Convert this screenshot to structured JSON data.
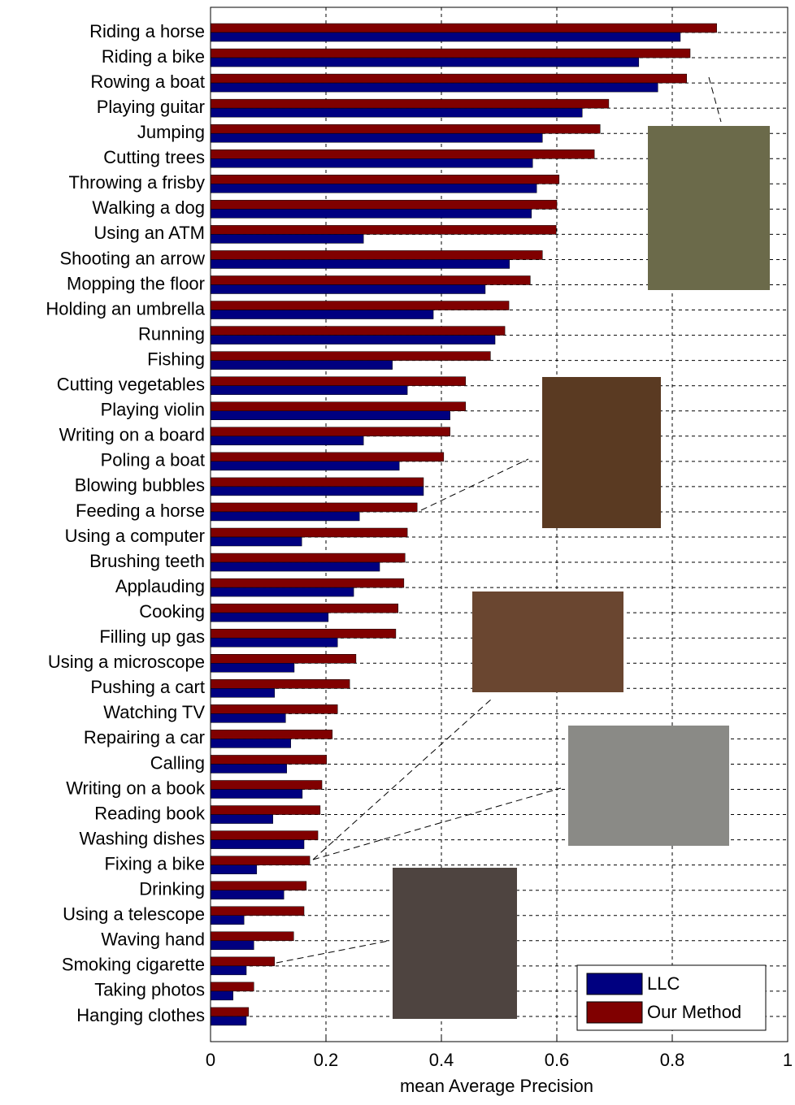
{
  "chart_data": {
    "type": "barh",
    "xlabel": "mean Average Precision",
    "categories": [
      "Riding a horse",
      "Riding a bike",
      "Rowing a boat",
      "Playing guitar",
      "Jumping",
      "Cutting trees",
      "Throwing a frisby",
      "Walking a dog",
      "Using an ATM",
      "Shooting an arrow",
      "Mopping the floor",
      "Holding an umbrella",
      "Running",
      "Fishing",
      "Cutting vegetables",
      "Playing violin",
      "Writing on a board",
      "Poling a boat",
      "Blowing bubbles",
      "Feeding a horse",
      "Using a computer",
      "Brushing teeth",
      "Applauding",
      "Cooking",
      "Filling up gas",
      "Using a microscope",
      "Pushing a cart",
      "Watching TV",
      "Repairing a car",
      "Calling",
      "Writing on a book",
      "Reading book",
      "Washing dishes",
      "Fixing a bike",
      "Drinking",
      "Using a telescope",
      "Waving hand",
      "Smoking cigarette",
      "Taking photos",
      "Hanging clothes"
    ],
    "series": [
      {
        "name": "Our Method",
        "color": "#800000",
        "values": [
          0.877,
          0.831,
          0.825,
          0.69,
          0.675,
          0.665,
          0.604,
          0.6,
          0.599,
          0.575,
          0.554,
          0.517,
          0.51,
          0.485,
          0.442,
          0.442,
          0.415,
          0.404,
          0.369,
          0.358,
          0.341,
          0.337,
          0.335,
          0.325,
          0.321,
          0.252,
          0.241,
          0.22,
          0.211,
          0.201,
          0.193,
          0.19,
          0.186,
          0.172,
          0.166,
          0.162,
          0.144,
          0.111,
          0.075,
          0.066
        ]
      },
      {
        "name": "LLC",
        "color": "#000080",
        "values": [
          0.814,
          0.742,
          0.775,
          0.644,
          0.575,
          0.558,
          0.565,
          0.556,
          0.265,
          0.518,
          0.476,
          0.386,
          0.493,
          0.315,
          0.341,
          0.415,
          0.265,
          0.327,
          0.369,
          0.258,
          0.158,
          0.293,
          0.248,
          0.204,
          0.22,
          0.145,
          0.111,
          0.13,
          0.139,
          0.132,
          0.159,
          0.108,
          0.162,
          0.08,
          0.127,
          0.058,
          0.075,
          0.062,
          0.039,
          0.062
        ]
      }
    ],
    "xlim": [
      0,
      1
    ],
    "xticks": [
      0,
      0.2,
      0.4,
      0.6,
      0.8,
      1
    ],
    "grid": true,
    "legend": "lower right"
  }
}
